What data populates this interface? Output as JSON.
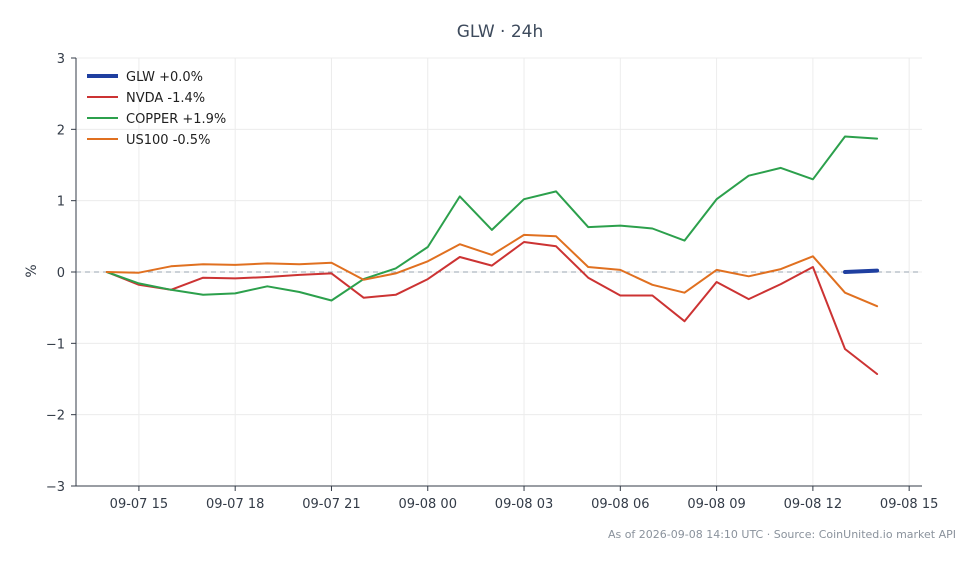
{
  "chart_data": {
    "type": "line",
    "title": "GLW · 24h",
    "ylabel": "%",
    "xlabel": "",
    "ylim": [
      -3,
      3
    ],
    "yticks": [
      3,
      2,
      1,
      0,
      -1,
      -2,
      -3
    ],
    "ytick_labels": [
      "3",
      "2",
      "1",
      "0",
      "−1",
      "−2",
      "−3"
    ],
    "xlim": [
      -0.96,
      25.4
    ],
    "xticks": [
      1,
      4,
      7,
      10,
      13,
      16,
      19,
      22,
      25
    ],
    "xtick_labels": [
      "09-07 15",
      "09-07 18",
      "09-07 21",
      "09-08 00",
      "09-08 03",
      "09-08 06",
      "09-08 09",
      "09-08 12",
      "09-08 15"
    ],
    "grid": true,
    "zero_line": true,
    "legend_position": "top-left",
    "series": [
      {
        "name": "GLW +0.0%",
        "color": "#1f3fa0",
        "bold": true,
        "x": [
          23,
          24
        ],
        "values": [
          0.0,
          0.02
        ]
      },
      {
        "name": "NVDA -1.4%",
        "color": "#cc3333",
        "x": [
          0,
          1,
          2,
          3,
          4,
          5,
          6,
          7,
          8,
          9,
          10,
          11,
          12,
          13,
          14,
          15,
          16,
          17,
          18,
          19,
          20,
          21,
          22,
          23,
          24
        ],
        "values": [
          0.0,
          -0.18,
          -0.25,
          -0.08,
          -0.09,
          -0.07,
          -0.04,
          -0.02,
          -0.36,
          -0.32,
          -0.1,
          0.21,
          0.09,
          0.42,
          0.36,
          -0.08,
          -0.33,
          -0.33,
          -0.69,
          -0.14,
          -0.38,
          -0.17,
          0.07,
          -1.08,
          -1.43
        ]
      },
      {
        "name": "COPPER +1.9%",
        "color": "#2ca04c",
        "x": [
          0,
          1,
          2,
          3,
          4,
          5,
          6,
          7,
          8,
          9,
          10,
          11,
          12,
          13,
          14,
          15,
          16,
          17,
          18,
          19,
          20,
          21,
          22,
          23,
          24
        ],
        "values": [
          0.0,
          -0.16,
          -0.25,
          -0.32,
          -0.3,
          -0.2,
          -0.28,
          -0.4,
          -0.1,
          0.05,
          0.35,
          1.06,
          0.59,
          1.02,
          1.13,
          0.63,
          0.65,
          0.61,
          0.44,
          1.02,
          1.35,
          1.46,
          1.3,
          1.9,
          1.87
        ]
      },
      {
        "name": "US100 -0.5%",
        "color": "#e07020",
        "x": [
          0,
          1,
          2,
          3,
          4,
          5,
          6,
          7,
          8,
          9,
          10,
          11,
          12,
          13,
          14,
          15,
          16,
          17,
          18,
          19,
          20,
          21,
          22,
          23,
          24
        ],
        "values": [
          0.0,
          -0.01,
          0.08,
          0.11,
          0.1,
          0.12,
          0.11,
          0.13,
          -0.11,
          -0.02,
          0.15,
          0.39,
          0.24,
          0.52,
          0.5,
          0.07,
          0.03,
          -0.18,
          -0.29,
          0.03,
          -0.06,
          0.04,
          0.22,
          -0.29,
          -0.48
        ]
      }
    ]
  },
  "footer": "As of 2026-09-08 14:10 UTC · Source: CoinUnited.io market API"
}
